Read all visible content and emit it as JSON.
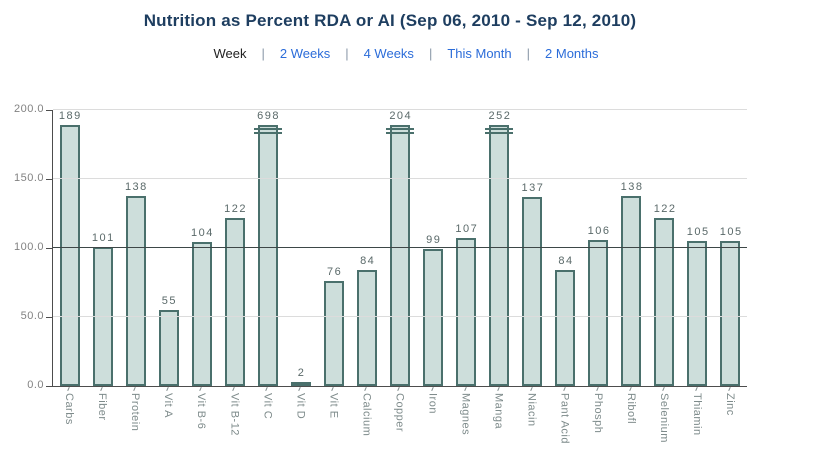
{
  "header": {
    "title": "Nutrition as Percent RDA or AI (Sep 06, 2010 - Sep 12, 2010)"
  },
  "nav": {
    "current": "Week",
    "separator": "|",
    "links": [
      "2 Weeks",
      "4 Weeks",
      "This Month",
      "2 Months"
    ]
  },
  "chart_data": {
    "type": "bar",
    "title": "Nutrition as Percent RDA or AI (Sep 06, 2010 - Sep 12, 2010)",
    "categories": [
      "Carbs",
      "Fiber",
      "Protein",
      "Vit A",
      "Vit B-6",
      "Vit B-12",
      "Vit C",
      "Vit D",
      "Vit E",
      "Calcium",
      "Copper",
      "Iron",
      "Magnes",
      "Manga",
      "Niacin",
      "Pant Acid",
      "Phosph",
      "Ribofl",
      "Selenium",
      "Thiamin",
      "Zinc"
    ],
    "values": [
      189,
      101,
      138,
      55,
      104,
      122,
      698,
      2,
      76,
      84,
      204,
      99,
      107,
      252,
      137,
      84,
      106,
      138,
      122,
      105,
      105
    ],
    "xlabel": "",
    "ylabel": "",
    "ylim": [
      0,
      200
    ],
    "yticks": [
      "0.0",
      "50.0",
      "100.0",
      "150.0",
      "200.0"
    ],
    "grid": true,
    "legend": "none",
    "reference_line": 100,
    "clipped_bars": {
      "note": "bars exceeding the 200 axis maximum are clipped and drawn with double break marks at the top",
      "categories": [
        "Vit C",
        "Copper",
        "Manga"
      ],
      "actual_values": [
        698,
        204,
        252
      ]
    }
  },
  "colors": {
    "background": "#ffffff",
    "title_text": "#1e3e60",
    "nav_current_text": "#222222",
    "link_text": "#2b6cd9",
    "bar_fill": "#cddedb",
    "bar_border": "#4a706c",
    "value_label": "#5a6969",
    "axis_label": "#828282",
    "category_label": "#7e8b8b",
    "gridline": "#dcdcdc",
    "reference_line": "#3d4747",
    "axis_line": "#4d4d4d"
  }
}
